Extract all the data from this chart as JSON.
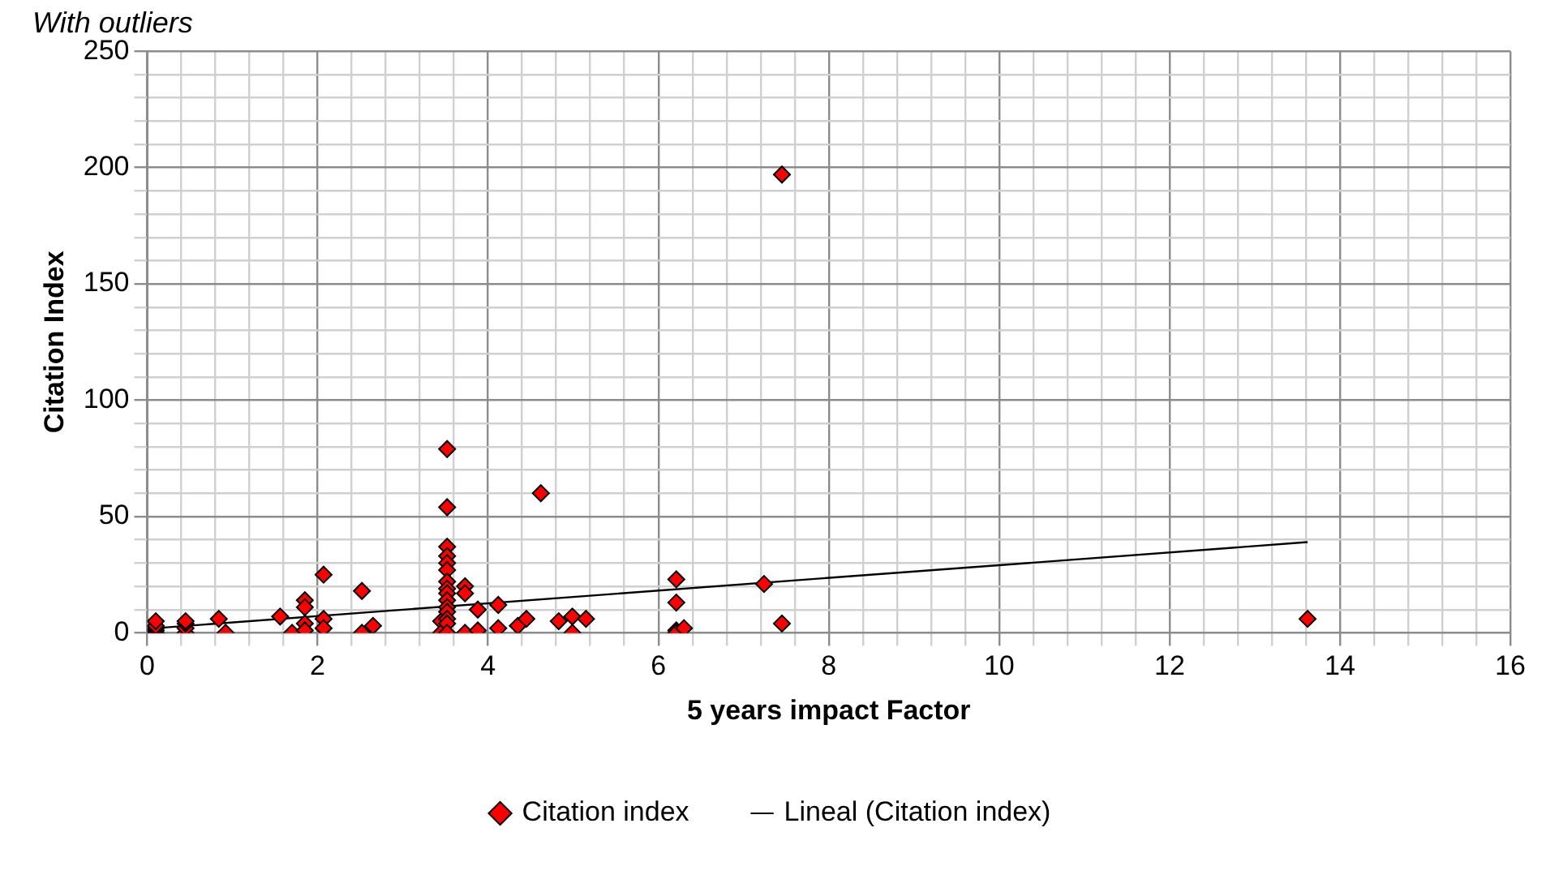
{
  "chart_data": {
    "type": "scatter",
    "title": "With outliers",
    "xlabel": "5 years impact Factor",
    "ylabel": "Citation Index",
    "xlim": [
      0,
      16
    ],
    "ylim": [
      0,
      250
    ],
    "xticks": [
      0,
      {
        "value": 0.4,
        "label": null
      },
      {
        "value": 0.8,
        "label": null
      },
      {
        "value": 1.2,
        "label": null
      },
      {
        "value": 1.6,
        "label": null
      },
      2,
      {
        "value": 2.4,
        "label": null
      },
      {
        "value": 2.8,
        "label": null
      },
      {
        "value": 3.2,
        "label": null
      },
      {
        "value": 3.6,
        "label": null
      },
      4,
      {
        "value": 4.4,
        "label": null
      },
      {
        "value": 4.8,
        "label": null
      },
      {
        "value": 5.2,
        "label": null
      },
      {
        "value": 5.6,
        "label": null
      },
      6,
      {
        "value": 6.4,
        "label": null
      },
      {
        "value": 6.8,
        "label": null
      },
      {
        "value": 7.2,
        "label": null
      },
      {
        "value": 7.6,
        "label": null
      },
      8,
      {
        "value": 8.4,
        "label": null
      },
      {
        "value": 8.8,
        "label": null
      },
      {
        "value": 9.2,
        "label": null
      },
      {
        "value": 9.6,
        "label": null
      },
      10,
      {
        "value": 10.4,
        "label": null
      },
      {
        "value": 10.8,
        "label": null
      },
      {
        "value": 11.2,
        "label": null
      },
      {
        "value": 11.6,
        "label": null
      },
      12,
      {
        "value": 12.4,
        "label": null
      },
      {
        "value": 12.8,
        "label": null
      },
      {
        "value": 13.2,
        "label": null
      },
      {
        "value": 13.6,
        "label": null
      },
      14,
      {
        "value": 14.4,
        "label": null
      },
      {
        "value": 14.8,
        "label": null
      },
      {
        "value": 15.2,
        "label": null
      },
      {
        "value": 15.6,
        "label": null
      },
      16
    ],
    "yticks": [
      0,
      {
        "value": 10,
        "label": null
      },
      {
        "value": 20,
        "label": null
      },
      {
        "value": 30,
        "label": null
      },
      {
        "value": 40,
        "label": null
      },
      50,
      {
        "value": 60,
        "label": null
      },
      {
        "value": 70,
        "label": null
      },
      {
        "value": 80,
        "label": null
      },
      {
        "value": 90,
        "label": null
      },
      100,
      {
        "value": 110,
        "label": null
      },
      {
        "value": 120,
        "label": null
      },
      {
        "value": 130,
        "label": null
      },
      {
        "value": 140,
        "label": null
      },
      150,
      {
        "value": 160,
        "label": null
      },
      {
        "value": 170,
        "label": null
      },
      {
        "value": 180,
        "label": null
      },
      {
        "value": 190,
        "label": null
      },
      200,
      {
        "value": 210,
        "label": null
      },
      {
        "value": 220,
        "label": null
      },
      {
        "value": 230,
        "label": null
      },
      {
        "value": 240,
        "label": null
      },
      250
    ],
    "grid": true,
    "legend": "bottom",
    "series": [
      {
        "name": "Citation index",
        "type": "scatter",
        "marker": "diamond",
        "color": "#ff0000",
        "x": [
          0.1,
          0.1,
          0.1,
          0.1,
          0.1,
          0.45,
          0.45,
          0.45,
          0.45,
          0.84,
          0.92,
          1.56,
          1.7,
          1.85,
          1.85,
          1.85,
          1.85,
          2.07,
          2.07,
          2.07,
          2.52,
          2.52,
          2.65,
          3.45,
          3.45,
          3.52,
          3.52,
          3.52,
          3.52,
          3.52,
          3.52,
          3.52,
          3.52,
          3.52,
          3.52,
          3.52,
          3.52,
          3.52,
          3.52,
          3.52,
          3.73,
          3.73,
          3.73,
          3.88,
          3.88,
          4.12,
          4.12,
          4.35,
          4.45,
          4.62,
          4.83,
          4.99,
          4.99,
          5.15,
          6.21,
          6.21,
          6.21,
          6.21,
          6.3,
          7.24,
          7.45,
          7.45,
          13.62
        ],
        "values": [
          0,
          1,
          2,
          3,
          5,
          0,
          2,
          4,
          5,
          6,
          0,
          7,
          0,
          14,
          11,
          4,
          1,
          25,
          6,
          2,
          18,
          0,
          3,
          5,
          0,
          79,
          54,
          37,
          33,
          30,
          27,
          22,
          19,
          17,
          14,
          11,
          9,
          6,
          4,
          0,
          20,
          17,
          0,
          10,
          1,
          12,
          2,
          3,
          6,
          60,
          5,
          7,
          0,
          6,
          23,
          13,
          1,
          0,
          2,
          21,
          4,
          197,
          6
        ]
      },
      {
        "name": "Lineal (Citation index)",
        "type": "line",
        "marker": "none",
        "line_style": "solid",
        "color": "#000000",
        "x": [
          0.1,
          13.62
        ],
        "values": [
          2,
          39
        ]
      }
    ]
  }
}
